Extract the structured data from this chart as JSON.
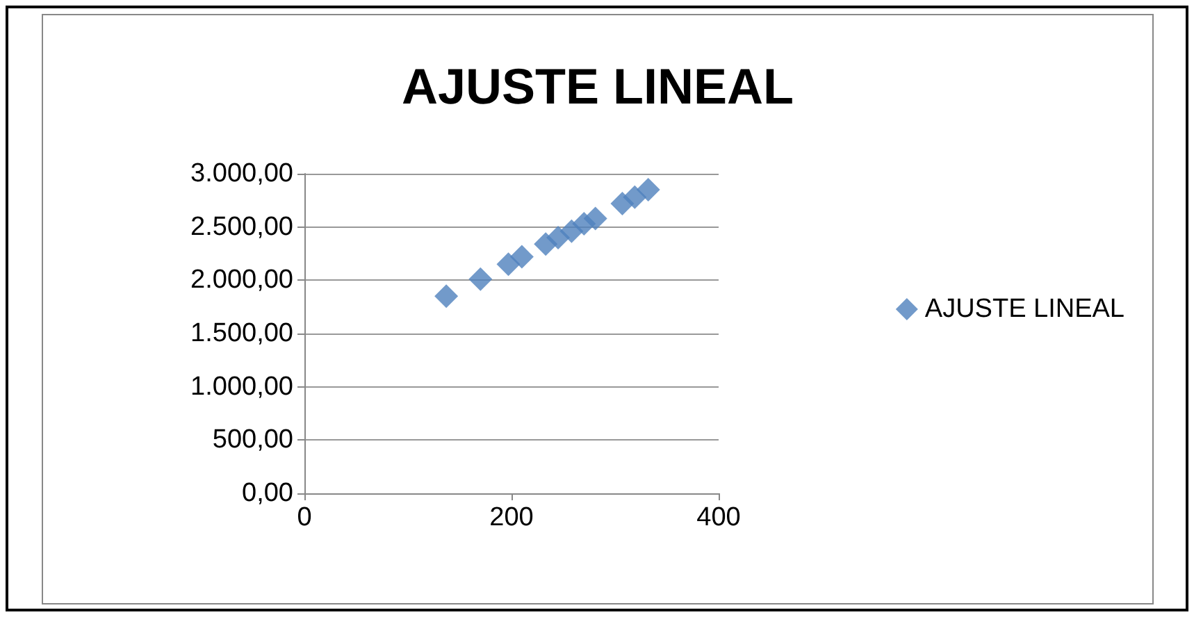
{
  "chart_data": {
    "type": "scatter",
    "title": "AJUSTE LINEAL",
    "x": [
      137,
      170,
      197,
      210,
      233,
      245,
      258,
      270,
      281,
      307,
      319,
      332
    ],
    "series": [
      {
        "name": "AJUSTE LINEAL",
        "color": "#4f81bd",
        "values": [
          1850,
          2010,
          2150,
          2220,
          2340,
          2400,
          2460,
          2530,
          2580,
          2720,
          2780,
          2850
        ]
      }
    ],
    "xlim": [
      0,
      400
    ],
    "xticks": [
      0,
      200,
      400
    ],
    "ylim": [
      0,
      3000
    ],
    "yticks": [
      {
        "value": 0,
        "label": "0,00"
      },
      {
        "value": 500,
        "label": "500,00"
      },
      {
        "value": 1000,
        "label": "1.000,00"
      },
      {
        "value": 1500,
        "label": "1.500,00"
      },
      {
        "value": 2000,
        "label": "2.000,00"
      },
      {
        "value": 2500,
        "label": "2.500,00"
      },
      {
        "value": 3000,
        "label": "3.000,00"
      }
    ],
    "grid": "y",
    "legend": "right",
    "marker": "diamond"
  }
}
